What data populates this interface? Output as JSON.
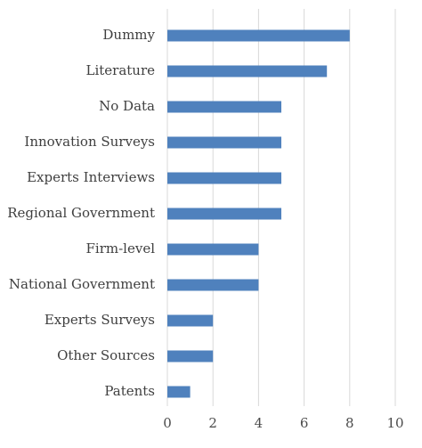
{
  "chart_data": {
    "type": "bar",
    "orientation": "horizontal",
    "categories": [
      "Dummy",
      "Literature",
      "No Data",
      "Innovation Surveys",
      "Experts Interviews",
      "Regional Government",
      "Firm-level",
      "National Government",
      "Experts Surveys",
      "Other Sources",
      "Patents"
    ],
    "values": [
      8,
      7,
      5,
      5,
      5,
      5,
      4,
      4,
      2,
      2,
      1
    ],
    "xlim": [
      0,
      10
    ],
    "x_ticks": [
      "0",
      "2",
      "4",
      "6",
      "8",
      "10"
    ],
    "title": "",
    "xlabel": "",
    "ylabel": "",
    "grid": "vertical",
    "legend": "none",
    "bar_color": "#4f81bd",
    "grid_color": "#d9d9d9"
  }
}
